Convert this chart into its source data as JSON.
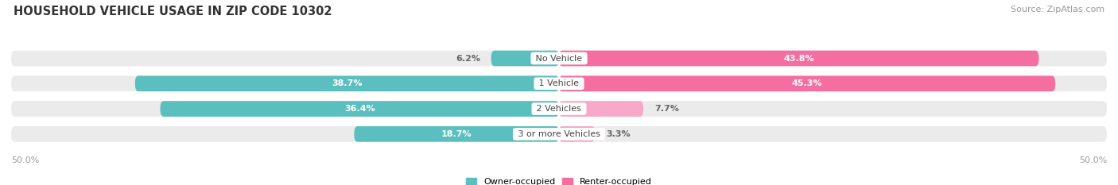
{
  "title": "HOUSEHOLD VEHICLE USAGE IN ZIP CODE 10302",
  "source": "Source: ZipAtlas.com",
  "categories": [
    "No Vehicle",
    "1 Vehicle",
    "2 Vehicles",
    "3 or more Vehicles"
  ],
  "owner_values": [
    6.2,
    38.7,
    36.4,
    18.7
  ],
  "renter_values": [
    43.8,
    45.3,
    7.7,
    3.3
  ],
  "owner_color": "#5BBFBF",
  "renter_color_strong": "#F46FA0",
  "renter_color_light": "#F8A8C8",
  "background_color": "#FFFFFF",
  "bar_bg_color": "#EBEBEB",
  "bar_separator_color": "#FFFFFF",
  "legend_owner": "Owner-occupied",
  "legend_renter": "Renter-occupied",
  "title_fontsize": 10.5,
  "source_fontsize": 8,
  "pct_label_fontsize": 8,
  "cat_label_fontsize": 8,
  "bar_height": 0.62,
  "rounding": 10,
  "xlim_left": -50,
  "xlim_right": 50,
  "strong_renter_threshold": 10.0
}
